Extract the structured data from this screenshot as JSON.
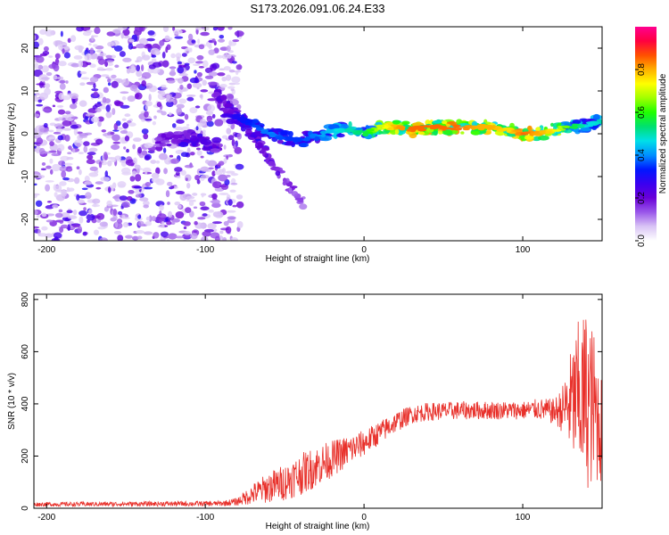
{
  "title": "S173.2026.091.06.24.E33",
  "colors": {
    "line": "#e8302a",
    "axis": "#000000",
    "background": "#ffffff"
  },
  "chart_data": [
    {
      "type": "heatmap",
      "name": "spectrogram",
      "xlabel": "Height of straight line (km)",
      "ylabel": "Frequency (Hz)",
      "xlim": [
        -208,
        150
      ],
      "ylim": [
        -25,
        25
      ],
      "xticks": [
        -200,
        -100,
        0,
        100
      ],
      "yticks": [
        -20,
        -10,
        0,
        10,
        20
      ],
      "colorbar": {
        "label": "Normalized spectral amplitude",
        "range": [
          0,
          1
        ],
        "ticks": [
          0.0,
          0.2,
          0.4,
          0.6,
          0.8
        ],
        "tick_labels": [
          "0.0",
          "0.2",
          "0.4",
          "0.6",
          "0.8"
        ],
        "colormap": [
          "#ffffff",
          "#d9c4f5",
          "#9a57ea",
          "#6a00d8",
          "#3a00f0",
          "#0018ff",
          "#0090ff",
          "#00e0e8",
          "#00e070",
          "#20ff00",
          "#a0ff00",
          "#ffff00",
          "#ffb000",
          "#ff5000",
          "#ff0040",
          "#ff0090"
        ]
      },
      "noise_region": {
        "x_range": [
          -208,
          -78
        ],
        "freq_range": [
          -25,
          25
        ],
        "amplitude": [
          0.05,
          0.3
        ]
      },
      "ridge_main": {
        "x": [
          -88,
          -80,
          -70,
          -60,
          -50,
          -40,
          -30,
          -20,
          -10,
          0,
          10,
          20,
          30,
          40,
          50,
          60,
          70,
          80,
          90,
          100,
          110,
          120,
          130,
          140,
          150
        ],
        "freq": [
          4.5,
          4,
          2,
          0,
          -1,
          -1.5,
          -0.5,
          0.5,
          1,
          0,
          1.5,
          1.5,
          1,
          1.5,
          1.5,
          1.5,
          1.5,
          1.5,
          1,
          0,
          0,
          1,
          1.5,
          2,
          3
        ],
        "amplitude": [
          0.25,
          0.3,
          0.35,
          0.4,
          0.35,
          0.35,
          0.4,
          0.45,
          0.5,
          0.55,
          0.7,
          0.8,
          0.85,
          0.85,
          0.85,
          0.85,
          0.8,
          0.8,
          0.75,
          0.85,
          0.8,
          0.75,
          0.6,
          0.45,
          0.5
        ]
      },
      "ridge_descending": {
        "x": [
          -95,
          -85,
          -75,
          -65,
          -55,
          -45,
          -38
        ],
        "freq": [
          10,
          6,
          2,
          -3,
          -8,
          -13,
          -16
        ],
        "amplitude": [
          0.2,
          0.3,
          0.3,
          0.3,
          0.25,
          0.2,
          0.15
        ]
      },
      "ridge_weak": {
        "x": [
          -130,
          -120,
          -110,
          -100,
          -90
        ],
        "freq": [
          -2,
          -1,
          -1,
          -2,
          -3
        ],
        "amplitude": [
          0.2,
          0.25,
          0.3,
          0.3,
          0.25
        ]
      }
    },
    {
      "type": "line",
      "name": "snr",
      "xlabel": "Height of straight line (km)",
      "ylabel": "SNR (10 * v/v)",
      "xlim": [
        -208,
        150
      ],
      "ylim": [
        0,
        820
      ],
      "xticks": [
        -200,
        -100,
        0,
        100
      ],
      "yticks": [
        0,
        200,
        400,
        600,
        800
      ],
      "series": [
        {
          "name": "SNR",
          "envelope_x": [
            -208,
            -90,
            -80,
            -70,
            -60,
            -50,
            -40,
            -30,
            -20,
            -10,
            0,
            10,
            20,
            30,
            40,
            60,
            80,
            100,
            110,
            120,
            125,
            130,
            135,
            140,
            145,
            150
          ],
          "envelope_mean": [
            15,
            18,
            25,
            55,
            80,
            100,
            130,
            160,
            190,
            220,
            250,
            290,
            330,
            360,
            370,
            375,
            375,
            375,
            380,
            370,
            380,
            400,
            420,
            420,
            380,
            300
          ],
          "envelope_spread": [
            8,
            10,
            15,
            40,
            60,
            70,
            80,
            80,
            70,
            60,
            50,
            45,
            40,
            35,
            35,
            35,
            35,
            35,
            40,
            50,
            90,
            200,
            300,
            350,
            300,
            200
          ]
        }
      ]
    }
  ]
}
